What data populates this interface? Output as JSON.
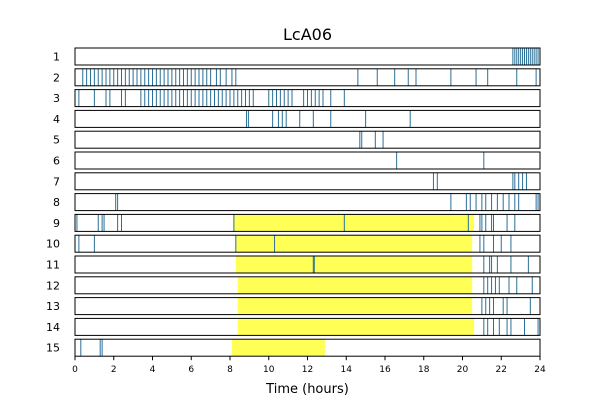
{
  "chart_data": {
    "type": "raster",
    "title": "LcA06",
    "xlabel": "Time (hours)",
    "ylabel": "",
    "xlim": [
      0,
      24
    ],
    "xticks": [
      0,
      2,
      4,
      6,
      8,
      10,
      12,
      14,
      16,
      18,
      20,
      22,
      24
    ],
    "colors": {
      "event": "#2a6f97",
      "highlight": "#ffff55",
      "frame": "#000000"
    },
    "rows": [
      {
        "label": "1",
        "highlight": null,
        "events": [
          22.6,
          22.7,
          22.8,
          22.9,
          23.0,
          23.1,
          23.2,
          23.3,
          23.4,
          23.5,
          23.6,
          23.7,
          23.8,
          23.9
        ]
      },
      {
        "label": "2",
        "highlight": null,
        "events": [
          0.4,
          0.6,
          0.8,
          1.0,
          1.2,
          1.4,
          1.6,
          1.8,
          2.0,
          2.2,
          2.4,
          2.6,
          2.8,
          3.0,
          3.2,
          3.4,
          3.6,
          3.8,
          4.0,
          4.2,
          4.4,
          4.6,
          4.8,
          5.0,
          5.2,
          5.4,
          5.6,
          5.8,
          6.0,
          6.2,
          6.4,
          6.6,
          6.8,
          7.0,
          7.3,
          7.5,
          7.8,
          8.1,
          8.3,
          14.6,
          15.6,
          16.5,
          17.2,
          17.6,
          19.4,
          20.7,
          21.3,
          22.8,
          23.8
        ]
      },
      {
        "label": "3",
        "highlight": null,
        "events": [
          0.2,
          1.0,
          1.6,
          1.8,
          2.4,
          2.6,
          3.4,
          3.6,
          3.8,
          4.0,
          4.2,
          4.4,
          4.6,
          4.8,
          5.0,
          5.2,
          5.4,
          5.6,
          5.8,
          6.0,
          6.2,
          6.4,
          6.6,
          6.8,
          7.0,
          7.2,
          7.4,
          7.6,
          7.8,
          8.0,
          8.2,
          8.4,
          8.6,
          8.8,
          9.0,
          9.2,
          10.0,
          10.2,
          10.4,
          10.6,
          10.8,
          11.0,
          11.2,
          11.8,
          12.0,
          12.2,
          12.4,
          12.6,
          12.8,
          13.2,
          13.9
        ]
      },
      {
        "label": "4",
        "highlight": null,
        "events": [
          8.85,
          8.95,
          10.2,
          10.5,
          10.7,
          10.9,
          11.6,
          12.3,
          13.2,
          15.0,
          17.3
        ]
      },
      {
        "label": "5",
        "highlight": null,
        "events": [
          14.7,
          14.8,
          15.5,
          15.9
        ]
      },
      {
        "label": "6",
        "highlight": null,
        "events": [
          16.6,
          21.1
        ]
      },
      {
        "label": "7",
        "highlight": null,
        "events": [
          18.5,
          18.7,
          22.6,
          22.7,
          22.9,
          23.1,
          23.3
        ]
      },
      {
        "label": "8",
        "highlight": null,
        "events": [
          2.1,
          2.2,
          19.4,
          20.2,
          20.4,
          20.7,
          21.0,
          21.2,
          21.5,
          21.8,
          22.1,
          22.4,
          22.7,
          22.9,
          23.8,
          23.9
        ]
      },
      {
        "label": "9",
        "highlight": [
          8.2,
          20.6
        ],
        "events": [
          0.1,
          1.2,
          1.4,
          1.5,
          2.2,
          2.4,
          8.2,
          13.9,
          20.3,
          20.9,
          21.0,
          21.2,
          21.5,
          21.6,
          22.3,
          22.7
        ]
      },
      {
        "label": "10",
        "highlight": [
          8.3,
          20.5
        ],
        "events": [
          0.2,
          1.0,
          8.3,
          10.3,
          20.9,
          21.1,
          21.6,
          22.0,
          22.5
        ]
      },
      {
        "label": "11",
        "highlight": [
          8.3,
          20.5
        ],
        "events": [
          12.3,
          12.35,
          21.1,
          21.4,
          21.5,
          21.8,
          22.5,
          23.4
        ]
      },
      {
        "label": "12",
        "highlight": [
          8.4,
          20.5
        ],
        "events": [
          21.1,
          21.3,
          21.5,
          21.7,
          21.9,
          22.4,
          22.8,
          23.6
        ]
      },
      {
        "label": "13",
        "highlight": [
          8.4,
          20.5
        ],
        "events": [
          21.0,
          21.2,
          21.4,
          21.6,
          22.1,
          22.3,
          23.5
        ]
      },
      {
        "label": "14",
        "highlight": [
          8.4,
          20.6
        ],
        "events": [
          21.1,
          21.3,
          21.6,
          21.9,
          22.3,
          22.5,
          23.2,
          23.9
        ]
      },
      {
        "label": "15",
        "highlight": [
          8.1,
          12.9
        ],
        "events": [
          0.3,
          1.3,
          1.4
        ]
      }
    ]
  }
}
